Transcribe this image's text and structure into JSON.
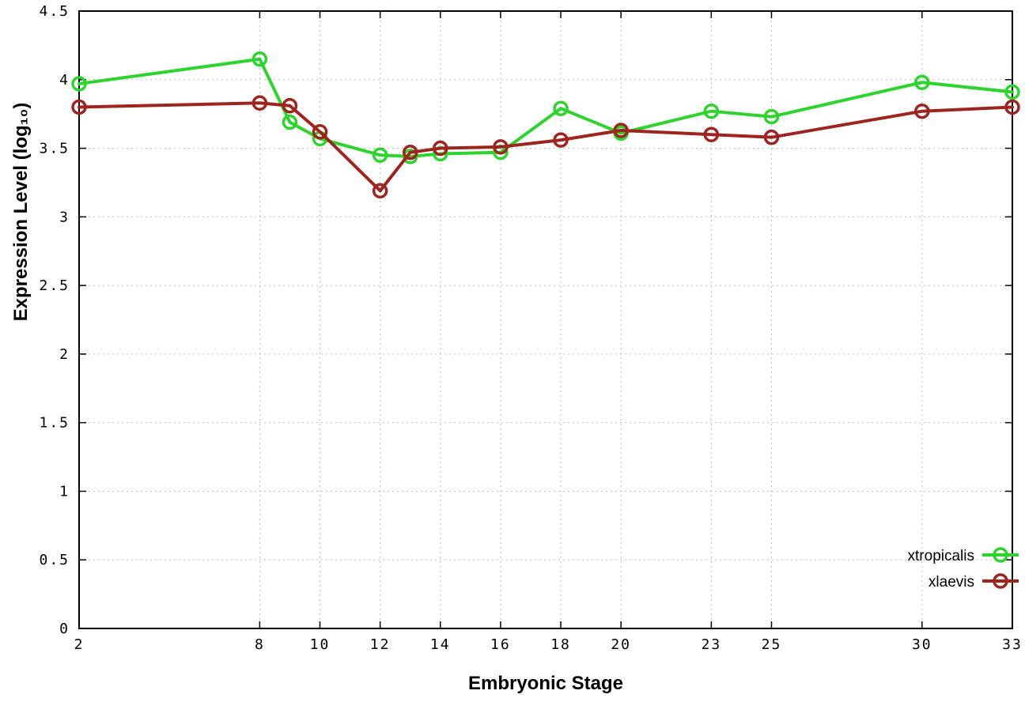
{
  "chart_data": {
    "type": "line",
    "title": "",
    "xlabel": "Embryonic Stage",
    "ylabel": "Expression Level (log₁₀)",
    "xlim": [
      2,
      33
    ],
    "ylim": [
      0,
      4.5
    ],
    "grid": "dotted",
    "legend_position": "bottom-right",
    "x_ticks": [
      {
        "v": 2,
        "label": "2"
      },
      {
        "v": 8,
        "label": "8"
      },
      {
        "v": 10,
        "label": "10"
      },
      {
        "v": 12,
        "label": "12"
      },
      {
        "v": 14,
        "label": "14"
      },
      {
        "v": 16,
        "label": "16"
      },
      {
        "v": 18,
        "label": "18"
      },
      {
        "v": 20,
        "label": "20"
      },
      {
        "v": 23,
        "label": "23"
      },
      {
        "v": 25,
        "label": "25"
      },
      {
        "v": 30,
        "label": "30"
      },
      {
        "v": 33,
        "label": "33"
      }
    ],
    "y_ticks": [
      {
        "v": 0,
        "label": "0"
      },
      {
        "v": 0.5,
        "label": "0.5"
      },
      {
        "v": 1,
        "label": "1"
      },
      {
        "v": 1.5,
        "label": "1.5"
      },
      {
        "v": 2,
        "label": "2"
      },
      {
        "v": 2.5,
        "label": "2.5"
      },
      {
        "v": 3,
        "label": "3"
      },
      {
        "v": 3.5,
        "label": "3.5"
      },
      {
        "v": 4,
        "label": "4"
      },
      {
        "v": 4.5,
        "label": "4.5"
      }
    ],
    "x": [
      2,
      8,
      9,
      10,
      12,
      13,
      14,
      16,
      18,
      20,
      23,
      25,
      30,
      33
    ],
    "series": [
      {
        "name": "xtropicalis",
        "color": "#2dd42d",
        "values": [
          3.97,
          4.15,
          3.69,
          3.57,
          3.45,
          3.44,
          3.46,
          3.47,
          3.79,
          3.61,
          3.77,
          3.73,
          3.98,
          3.91
        ]
      },
      {
        "name": "xlaevis",
        "color": "#9e2420",
        "values": [
          3.8,
          3.83,
          3.81,
          3.62,
          3.19,
          3.47,
          3.5,
          3.51,
          3.56,
          3.63,
          3.6,
          3.58,
          3.77,
          3.8
        ]
      }
    ],
    "style": {
      "grid_color": "#bdbdbd",
      "axis_color": "#000000",
      "line_width": 4,
      "marker_radius": 8,
      "marker_stroke": 3.5
    }
  }
}
